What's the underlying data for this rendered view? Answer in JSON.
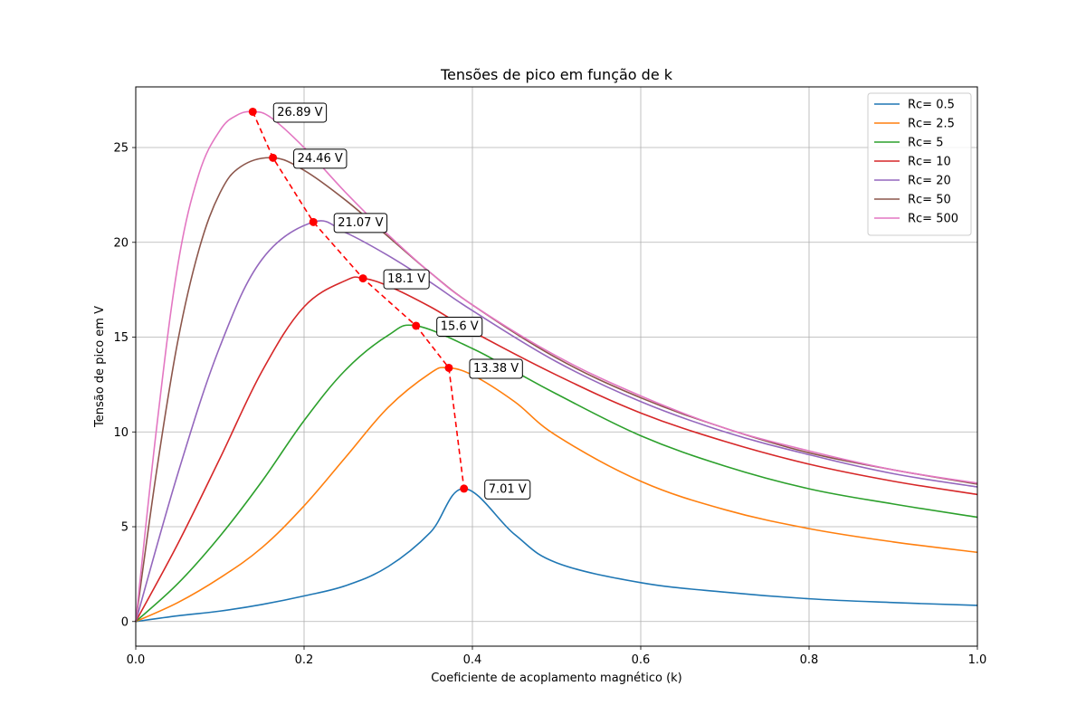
{
  "chart_data": {
    "type": "line",
    "title": "Tensões de pico em função de k",
    "xlabel": "Coeficiente de acoplamento magnético (k)",
    "ylabel": "Tensão de pico em V",
    "xlim": [
      0.0,
      1.0
    ],
    "ylim": [
      -1.3,
      28.2
    ],
    "xticks": [
      0.0,
      0.2,
      0.4,
      0.6,
      0.8,
      1.0
    ],
    "xtick_labels": [
      "0.0",
      "0.2",
      "0.4",
      "0.6",
      "0.8",
      "1.0"
    ],
    "yticks": [
      0,
      5,
      10,
      15,
      20,
      25
    ],
    "ytick_labels": [
      "0",
      "5",
      "10",
      "15",
      "20",
      "25"
    ],
    "grid": true,
    "legend_position": "top-right",
    "series": [
      {
        "name": "Rc= 0.5",
        "color": "#1f77b4",
        "x": [
          0,
          0.05,
          0.1,
          0.15,
          0.2,
          0.25,
          0.3,
          0.35,
          0.39,
          0.45,
          0.5,
          0.6,
          0.7,
          0.8,
          0.9,
          1.0
        ],
        "y": [
          0,
          0.3,
          0.55,
          0.9,
          1.35,
          1.9,
          2.9,
          4.7,
          7.01,
          4.6,
          3.1,
          2.05,
          1.55,
          1.2,
          1.0,
          0.85
        ]
      },
      {
        "name": "Rc= 2.5",
        "color": "#ff7f0e",
        "x": [
          0,
          0.05,
          0.1,
          0.15,
          0.2,
          0.25,
          0.3,
          0.35,
          0.37,
          0.4,
          0.45,
          0.5,
          0.6,
          0.7,
          0.8,
          0.9,
          1.0
        ],
        "y": [
          0,
          1.0,
          2.3,
          3.9,
          6.1,
          8.7,
          11.3,
          13.1,
          13.38,
          13.0,
          11.6,
          9.8,
          7.4,
          5.9,
          4.9,
          4.2,
          3.65
        ]
      },
      {
        "name": "Rc= 5",
        "color": "#2ca02c",
        "x": [
          0,
          0.05,
          0.1,
          0.15,
          0.2,
          0.25,
          0.3,
          0.333,
          0.4,
          0.45,
          0.5,
          0.6,
          0.7,
          0.8,
          0.9,
          1.0
        ],
        "y": [
          0,
          2.0,
          4.5,
          7.4,
          10.6,
          13.3,
          15.1,
          15.6,
          14.4,
          13.2,
          12.0,
          9.8,
          8.2,
          7.0,
          6.2,
          5.5
        ]
      },
      {
        "name": "Rc= 10",
        "color": "#d62728",
        "x": [
          0,
          0.05,
          0.1,
          0.15,
          0.2,
          0.25,
          0.27,
          0.3,
          0.35,
          0.4,
          0.5,
          0.6,
          0.7,
          0.8,
          0.9,
          1.0
        ],
        "y": [
          0,
          4.1,
          8.6,
          13.2,
          16.6,
          18.0,
          18.1,
          17.7,
          16.6,
          15.3,
          13.0,
          11.0,
          9.5,
          8.3,
          7.4,
          6.7
        ]
      },
      {
        "name": "Rc= 20",
        "color": "#9467bd",
        "x": [
          0,
          0.05,
          0.1,
          0.15,
          0.211,
          0.25,
          0.3,
          0.35,
          0.4,
          0.5,
          0.6,
          0.7,
          0.8,
          0.9,
          1.0
        ],
        "y": [
          0,
          7.8,
          14.5,
          19.1,
          21.07,
          20.5,
          19.3,
          17.9,
          16.4,
          13.7,
          11.6,
          10.0,
          8.8,
          7.8,
          7.1
        ]
      },
      {
        "name": "Rc= 50",
        "color": "#8c564b",
        "x": [
          0,
          0.025,
          0.05,
          0.075,
          0.1,
          0.125,
          0.163,
          0.2,
          0.25,
          0.3,
          0.35,
          0.4,
          0.5,
          0.6,
          0.7,
          0.8,
          0.9,
          1.0
        ],
        "y": [
          0,
          8.0,
          14.8,
          19.6,
          22.6,
          24.0,
          24.46,
          23.8,
          22.2,
          20.3,
          18.4,
          16.7,
          13.9,
          11.8,
          10.2,
          8.9,
          8.0,
          7.25
        ]
      },
      {
        "name": "Rc= 500",
        "color": "#e377c2",
        "x": [
          0,
          0.025,
          0.05,
          0.075,
          0.1,
          0.12,
          0.139,
          0.16,
          0.2,
          0.25,
          0.3,
          0.35,
          0.4,
          0.5,
          0.6,
          0.7,
          0.8,
          0.9,
          1.0
        ],
        "y": [
          0,
          10.3,
          18.8,
          23.6,
          25.9,
          26.7,
          26.89,
          26.6,
          25.0,
          22.6,
          20.4,
          18.4,
          16.7,
          14.0,
          11.9,
          10.2,
          9.0,
          8.0,
          7.3
        ]
      }
    ],
    "peak_line": {
      "color": "#ff0000",
      "style": "dashed",
      "x": [
        0.139,
        0.163,
        0.211,
        0.27,
        0.333,
        0.372,
        0.39
      ],
      "y": [
        26.89,
        24.46,
        21.07,
        18.1,
        15.6,
        13.38,
        7.01
      ]
    },
    "annotations": [
      {
        "text": "26.89 V",
        "x": 0.139,
        "y": 26.89
      },
      {
        "text": "24.46 V",
        "x": 0.163,
        "y": 24.46
      },
      {
        "text": "21.07 V",
        "x": 0.211,
        "y": 21.07
      },
      {
        "text": "18.1 V",
        "x": 0.27,
        "y": 18.1
      },
      {
        "text": "15.6 V",
        "x": 0.333,
        "y": 15.6
      },
      {
        "text": "13.38 V",
        "x": 0.372,
        "y": 13.38
      },
      {
        "text": "7.01 V",
        "x": 0.39,
        "y": 7.01
      }
    ]
  }
}
